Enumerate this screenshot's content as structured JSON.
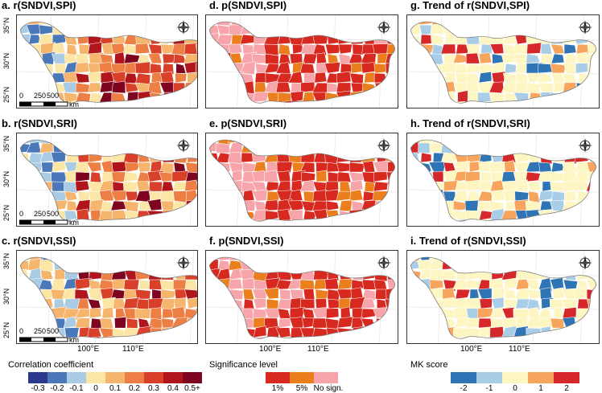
{
  "panels": [
    {
      "title": "a. r(SNDVI,SPI)",
      "kind": "corr"
    },
    {
      "title": "d. p(SNDVI,SPI)",
      "kind": "sig"
    },
    {
      "title": "g. Trend of r(SNDVI,SPI)",
      "kind": "trend"
    },
    {
      "title": "b. r(SNDVI,SRI)",
      "kind": "corr"
    },
    {
      "title": "e. p(SNDVI,SRI)",
      "kind": "sig"
    },
    {
      "title": "h. Trend of r(SNDVI,SRI)",
      "kind": "trend"
    },
    {
      "title": "c. r(SNDVI,SSI)",
      "kind": "corr"
    },
    {
      "title": "f. p(SNDVI,SSI)",
      "kind": "sig"
    },
    {
      "title": "i. Trend of r(SNDVI,SSI)",
      "kind": "trend"
    }
  ],
  "lat_labels": [
    "35°N",
    "30°N",
    "25°N"
  ],
  "lon_labels": [
    "100°E",
    "110°E"
  ],
  "scalebar": {
    "ticks": [
      "0",
      "250",
      "500"
    ],
    "unit": "km"
  },
  "legends": {
    "correlation": {
      "title": "Correlation coefficient",
      "ticks": [
        "-0.3",
        "-0.2",
        "-0.1",
        "0",
        "0.1",
        "0.2",
        "0.3",
        "0.4",
        "0.5+"
      ],
      "colors": [
        "#2b3a8c",
        "#4a78b8",
        "#a9cbe3",
        "#fbe6a6",
        "#f6b56d",
        "#ed7f45",
        "#d8402a",
        "#b0151b",
        "#7e0420"
      ]
    },
    "significance": {
      "title": "Significance level",
      "ticks": [
        "1%",
        "5%",
        "No sign."
      ],
      "colors": [
        "#d7291f",
        "#ec7f1d",
        "#f7a5ab"
      ]
    },
    "mk": {
      "title": "MK score",
      "ticks": [
        "-2",
        "-1",
        "0",
        "1",
        "2"
      ],
      "colors": [
        "#2f74b5",
        "#a8cde6",
        "#fdf6c2",
        "#f7a45c",
        "#d6272a"
      ]
    }
  }
}
